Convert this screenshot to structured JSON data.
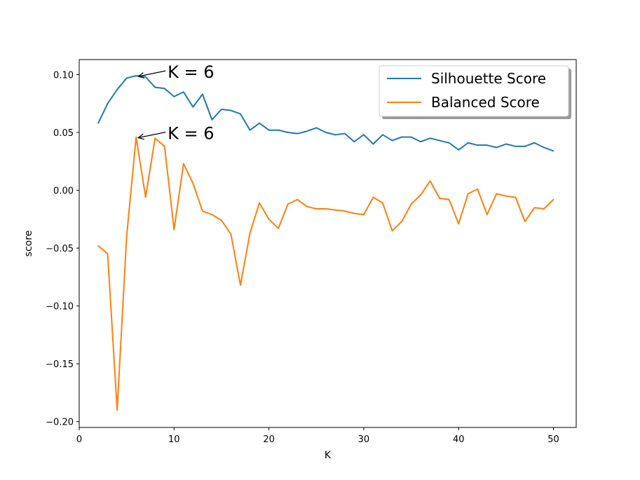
{
  "chart_data": {
    "type": "line",
    "xlabel": "K",
    "ylabel": "score",
    "xlim": [
      0,
      52.4
    ],
    "ylim": [
      -0.205,
      0.113
    ],
    "xticks": [
      0,
      10,
      20,
      30,
      40,
      50
    ],
    "xtick_labels": [
      "0",
      "10",
      "20",
      "30",
      "40",
      "50"
    ],
    "yticks": [
      -0.2,
      -0.15,
      -0.1,
      -0.05,
      0.0,
      0.05,
      0.1
    ],
    "ytick_labels": [
      "−0.20",
      "−0.15",
      "−0.10",
      "−0.05",
      "0.00",
      "0.05",
      "0.10"
    ],
    "grid": false,
    "legend_position": "top-right",
    "x": [
      2,
      3,
      4,
      5,
      6,
      7,
      8,
      9,
      10,
      11,
      12,
      13,
      14,
      15,
      16,
      17,
      18,
      19,
      20,
      21,
      22,
      23,
      24,
      25,
      26,
      27,
      28,
      29,
      30,
      31,
      32,
      33,
      34,
      35,
      36,
      37,
      38,
      39,
      40,
      41,
      42,
      43,
      44,
      45,
      46,
      47,
      48,
      49,
      50
    ],
    "series": [
      {
        "name": "Silhouette Score",
        "color": "#1f77b4",
        "values": [
          0.058,
          0.075,
          0.087,
          0.097,
          0.099,
          0.098,
          0.089,
          0.088,
          0.081,
          0.085,
          0.072,
          0.083,
          0.061,
          0.07,
          0.069,
          0.066,
          0.052,
          0.058,
          0.052,
          0.052,
          0.05,
          0.049,
          0.051,
          0.054,
          0.05,
          0.048,
          0.049,
          0.042,
          0.048,
          0.04,
          0.048,
          0.043,
          0.046,
          0.046,
          0.042,
          0.045,
          0.043,
          0.041,
          0.035,
          0.041,
          0.039,
          0.039,
          0.037,
          0.04,
          0.038,
          0.038,
          0.041,
          0.037,
          0.034
        ]
      },
      {
        "name": "Balanced Score",
        "color": "#ff7f0e",
        "values": [
          -0.048,
          -0.055,
          -0.19,
          -0.04,
          0.046,
          -0.006,
          0.045,
          0.038,
          -0.034,
          0.023,
          0.006,
          -0.018,
          -0.021,
          -0.026,
          -0.038,
          -0.082,
          -0.037,
          -0.011,
          -0.025,
          -0.033,
          -0.012,
          -0.008,
          -0.014,
          -0.016,
          -0.016,
          -0.017,
          -0.018,
          -0.02,
          -0.021,
          -0.006,
          -0.011,
          -0.035,
          -0.027,
          -0.012,
          -0.004,
          0.008,
          -0.007,
          -0.008,
          -0.029,
          -0.003,
          0.001,
          -0.021,
          -0.003,
          -0.005,
          -0.006,
          -0.027,
          -0.015,
          -0.016,
          -0.008
        ]
      }
    ],
    "annotations": [
      {
        "text": "K = 6",
        "x": 6,
        "y": 0.099,
        "series": "Silhouette Score"
      },
      {
        "text": "K = 6",
        "x": 6,
        "y": 0.046,
        "series": "Balanced Score"
      }
    ]
  }
}
